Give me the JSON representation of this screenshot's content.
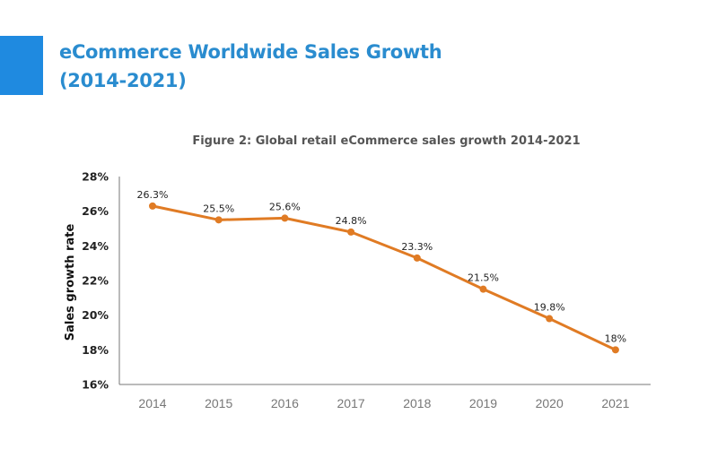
{
  "header": {
    "title_line1": "eCommerce Worldwide Sales Growth",
    "title_line2": "(2014-2021)",
    "title_color": "#2a8ccf",
    "accent_color": "#1f8ae0"
  },
  "chart_data": {
    "type": "line",
    "title": "Figure 2: Global retail eCommerce sales growth 2014-2021",
    "xlabel": "",
    "ylabel": "Sales growth rate",
    "categories": [
      "2014",
      "2015",
      "2016",
      "2017",
      "2018",
      "2019",
      "2020",
      "2021"
    ],
    "series": [
      {
        "name": "Sales growth rate",
        "values": [
          26.3,
          25.5,
          25.6,
          24.8,
          23.3,
          21.5,
          19.8,
          18
        ],
        "labels": [
          "26.3%",
          "25.5%",
          "25.6%",
          "24.8%",
          "23.3%",
          "21.5%",
          "19.8%",
          "18%"
        ],
        "color": "#e07b24"
      }
    ],
    "ylim": [
      16,
      28
    ],
    "yticks": [
      16,
      18,
      20,
      22,
      24,
      26,
      28
    ],
    "ytick_labels": [
      "16%",
      "18%",
      "20%",
      "22%",
      "24%",
      "26%",
      "28%"
    ],
    "grid": false,
    "legend": "none"
  }
}
